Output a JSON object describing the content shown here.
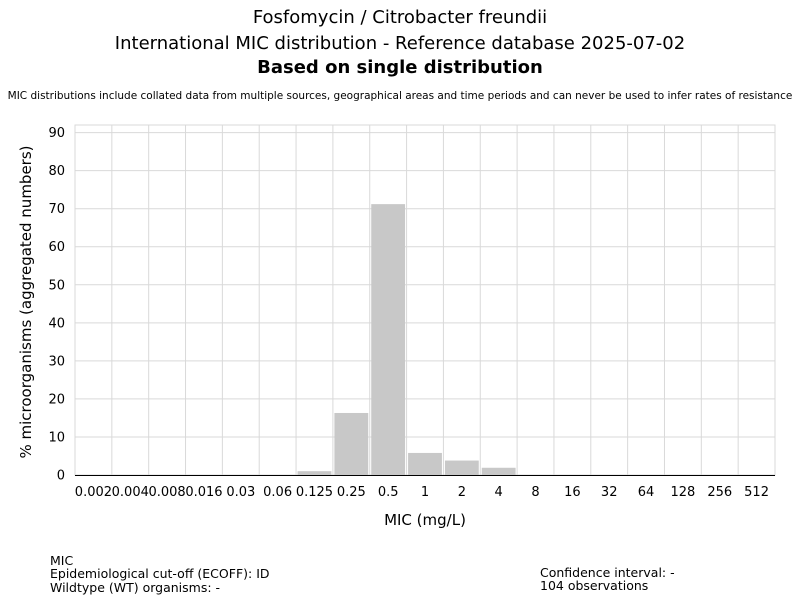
{
  "header": {
    "title_line1": "Fosfomycin / Citrobacter freundii",
    "title_line2": "International MIC distribution - Reference database 2025-07-02",
    "title_line3": "Based on single distribution",
    "disclaimer": "MIC distributions include collated data from multiple sources, geographical areas and time periods and can never be used to infer rates of resistance"
  },
  "chart_data": {
    "type": "bar",
    "xlabel": "MIC (mg/L)",
    "ylabel": "% microorganisms (aggregated numbers)",
    "ylim": [
      0,
      92
    ],
    "yticks": [
      0,
      10,
      20,
      30,
      40,
      50,
      60,
      70,
      80,
      90
    ],
    "grid": true,
    "categories": [
      "0.002",
      "0.004",
      "0.008",
      "0.016",
      "0.03",
      "0.06",
      "0.125",
      "0.25",
      "0.5",
      "1",
      "2",
      "4",
      "8",
      "16",
      "32",
      "64",
      "128",
      "256",
      "512"
    ],
    "values": [
      0,
      0,
      0,
      0,
      0,
      0,
      1,
      16.3,
      71.2,
      5.8,
      3.8,
      1.9,
      0,
      0,
      0,
      0,
      0,
      0,
      0
    ],
    "bar_color": "#c8c8c8",
    "grid_color": "#d9d9d9"
  },
  "footer": {
    "mic_label": "MIC",
    "ecoff_line": "Epidemiological cut-off (ECOFF): ID",
    "wt_line": "Wildtype (WT) organisms:  -",
    "ci_line": "Confidence interval: -",
    "observations_line": "104 observations"
  }
}
